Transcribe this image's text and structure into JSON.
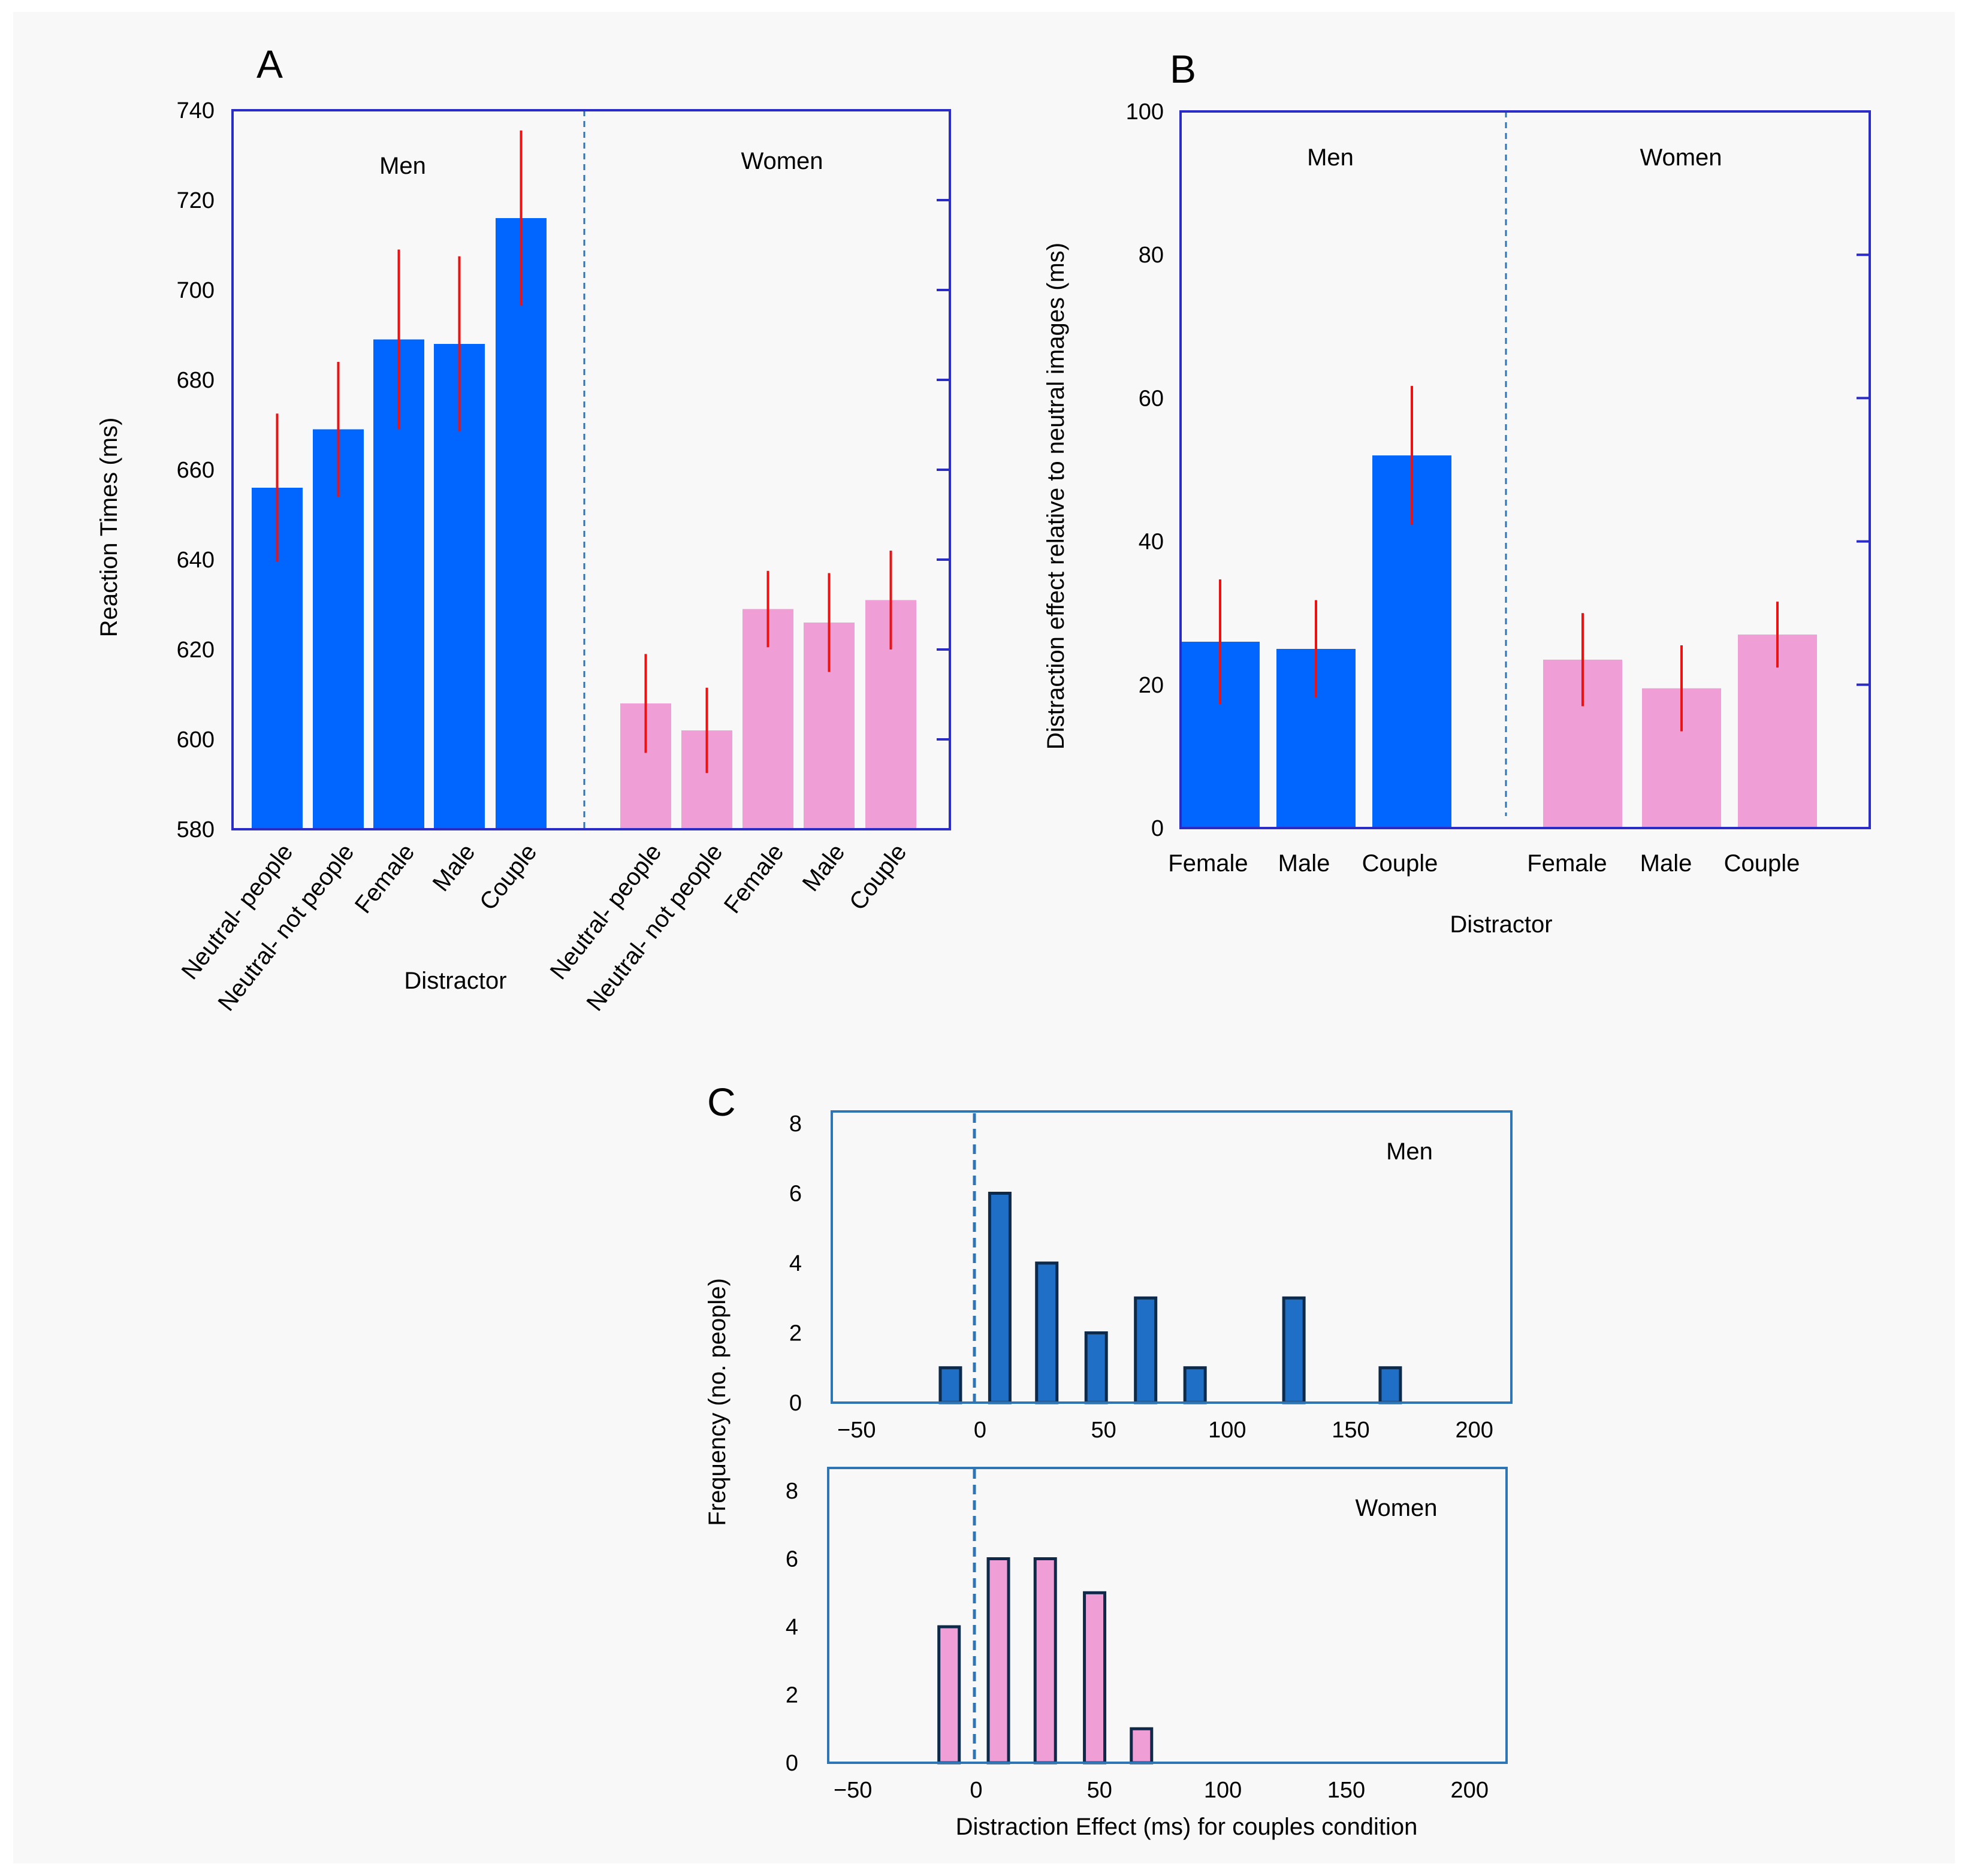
{
  "chart_data": [
    {
      "panel": "A",
      "type": "bar",
      "xlabel": "Distractor",
      "ylabel": "Reaction Times (ms)",
      "ylim": [
        580,
        740
      ],
      "yticks": [
        580,
        600,
        620,
        640,
        660,
        680,
        700,
        720,
        740
      ],
      "groups": [
        {
          "name": "Men",
          "color": "#0066ff",
          "categories": [
            "Neutral- people",
            "Neutral- not people",
            "Female",
            "Male",
            "Couple"
          ],
          "values": [
            656,
            669,
            689,
            688,
            716
          ],
          "errors": [
            16.5,
            15,
            20,
            19.5,
            19.5
          ]
        },
        {
          "name": "Women",
          "color": "#f09ed6",
          "categories": [
            "Neutral- people",
            "Neutral- not people",
            "Female",
            "Male",
            "Couple"
          ],
          "values": [
            608,
            602,
            629,
            626,
            631
          ],
          "errors": [
            11,
            9.5,
            8.5,
            11,
            11
          ]
        }
      ]
    },
    {
      "panel": "B",
      "type": "bar",
      "xlabel": "Distractor",
      "ylabel": "Distraction effect relative to neutral images  (ms)",
      "ylim": [
        0,
        100
      ],
      "yticks": [
        0,
        20,
        40,
        60,
        80,
        100
      ],
      "groups": [
        {
          "name": "Men",
          "color": "#0066ff",
          "categories": [
            "Female",
            "Male",
            "Couple"
          ],
          "values": [
            26,
            25,
            52
          ],
          "errors": [
            8.7,
            6.8,
            9.7
          ]
        },
        {
          "name": "Women",
          "color": "#f09ed6",
          "categories": [
            "Female",
            "Male",
            "Couple"
          ],
          "values": [
            23.5,
            19.5,
            27
          ],
          "errors": [
            6.5,
            6,
            4.6
          ]
        }
      ]
    },
    {
      "panel": "C",
      "type": "bar",
      "subtype": "histogram",
      "xlabel": "Distraction Effect (ms) for couples condition",
      "ylabel": "Frequency (no. people)",
      "xlim": [
        -60,
        215
      ],
      "xticks": [
        -50,
        0,
        50,
        100,
        150,
        200
      ],
      "xtick_labels": [
        "−50",
        "0",
        "50",
        "100",
        "150",
        "200"
      ],
      "ylim": [
        0,
        8
      ],
      "yticks": [
        0,
        2,
        4,
        6,
        8
      ],
      "reference_line_x": 0,
      "series": [
        {
          "name": "Men",
          "color": "#1f6fc6",
          "x": [
            -12,
            8,
            27,
            47,
            67,
            87,
            127,
            166
          ],
          "values": [
            1,
            6,
            4,
            2,
            3,
            1,
            3,
            1
          ]
        },
        {
          "name": "Women",
          "color": "#f09ed6",
          "x": [
            -11,
            9,
            28,
            48,
            67
          ],
          "values": [
            4,
            6,
            6,
            5,
            1
          ]
        }
      ]
    }
  ]
}
